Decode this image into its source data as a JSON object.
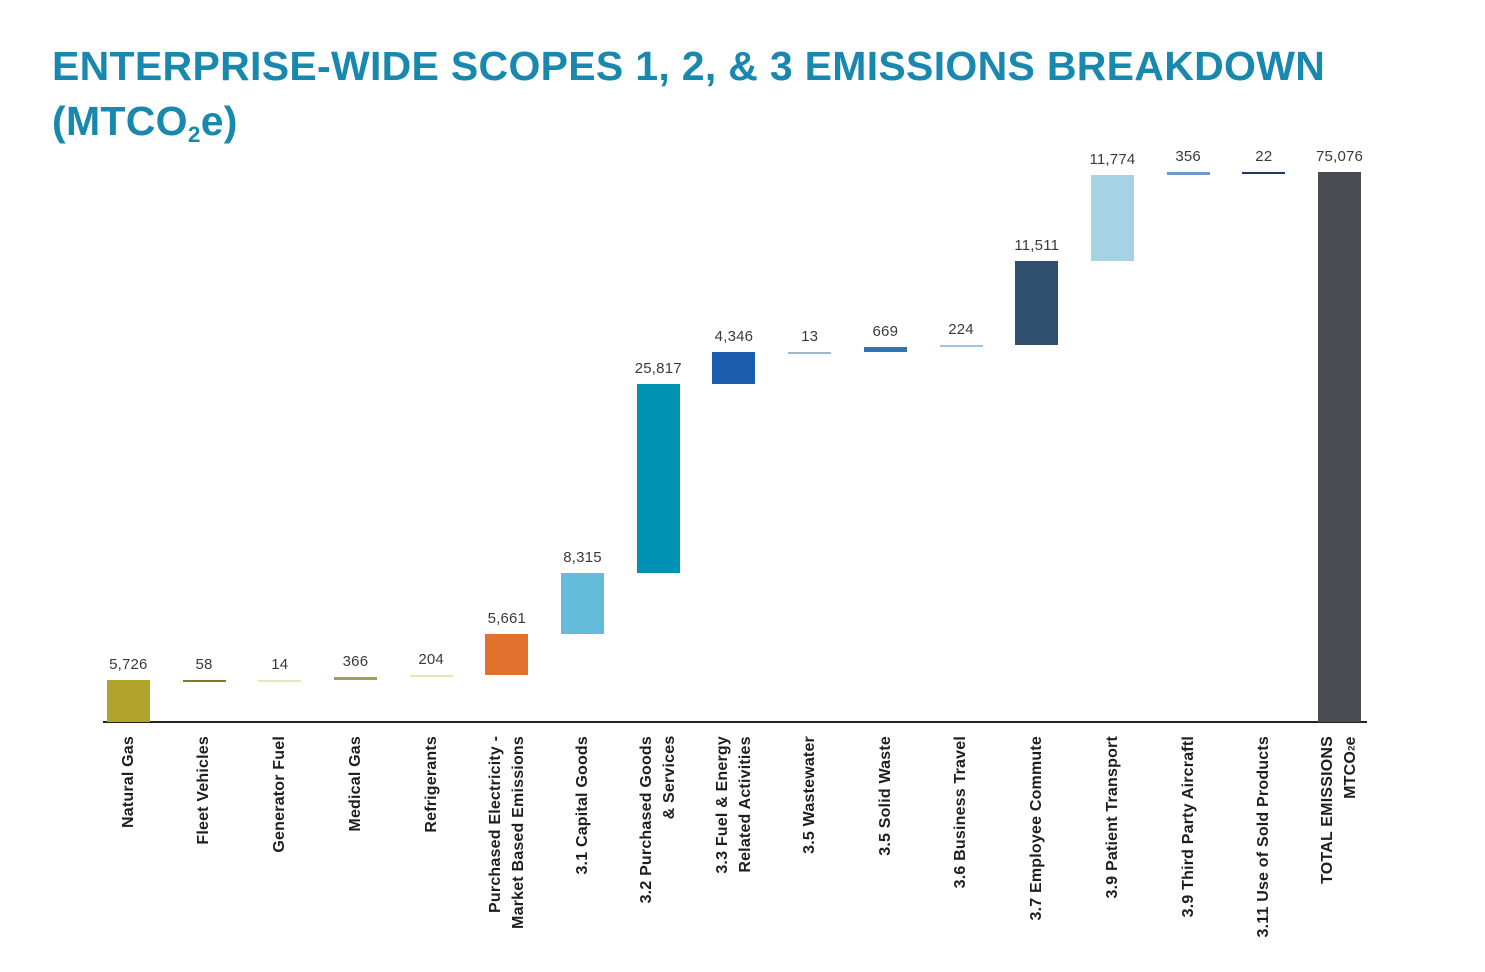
{
  "title": {
    "line1": "ENTERPRISE-WIDE SCOPES 1, 2, & 3 EMISSIONS BREAKDOWN",
    "line2": "(MTCO~2~e)"
  },
  "colors": {
    "title": "#1888ae",
    "axis": "#232323",
    "value_label": "#3a3a3a",
    "category_label": "#1e1e1e"
  },
  "chart_data": {
    "type": "bar",
    "subtype": "waterfall",
    "title": "ENTERPRISE-WIDE SCOPES 1, 2, & 3 EMISSIONS BREAKDOWN (MTCO2e)",
    "unit": "MTCO2e",
    "ylim": [
      0,
      75076
    ],
    "grid": false,
    "legend": false,
    "total": 75076,
    "categories": [
      "Natural Gas",
      "Fleet Vehicles",
      "Generator Fuel",
      "Medical Gas",
      "Refrigerants",
      "Purchased Electricity - Market Based Emissions",
      "3.1 Capital Goods",
      "3.2 Purchased Goods & Services",
      "3.3 Fuel & Energy Related Activities",
      "3.5 Wastewater",
      "3.5 Solid Waste",
      "3.6 Business Travel",
      "3.7 Employee Commute",
      "3.9 Patient Transport",
      "3.9 Third Party Aircraftl",
      "3.11 Use of Sold Products",
      "TOTAL EMISSIONS MTCO2e"
    ],
    "values": [
      5726,
      58,
      14,
      366,
      204,
      5661,
      8315,
      25817,
      4346,
      13,
      669,
      224,
      11511,
      11774,
      356,
      22,
      75076
    ],
    "bars": [
      {
        "category": "Natural Gas",
        "label_lines": [
          "Natural Gas"
        ],
        "value": 5726,
        "value_label": "5,726",
        "color": "#b1a42c",
        "is_total": false
      },
      {
        "category": "Fleet Vehicles",
        "label_lines": [
          "Fleet Vehicles"
        ],
        "value": 58,
        "value_label": "58",
        "color": "#7f7b28",
        "is_total": false
      },
      {
        "category": "Generator Fuel",
        "label_lines": [
          "Generator Fuel"
        ],
        "value": 14,
        "value_label": "14",
        "color": "#e9e5c0",
        "is_total": false
      },
      {
        "category": "Medical Gas",
        "label_lines": [
          "Medical Gas"
        ],
        "value": 366,
        "value_label": "366",
        "color": "#a29c60",
        "is_total": false
      },
      {
        "category": "Refrigerants",
        "label_lines": [
          "Refrigerants"
        ],
        "value": 204,
        "value_label": "204",
        "color": "#e8e4b4",
        "is_total": false
      },
      {
        "category": "Purchased Electricity - Market Based Emissions",
        "label_lines": [
          "Purchased Electricity -",
          "Market Based Emissions"
        ],
        "value": 5661,
        "value_label": "5,661",
        "color": "#e1722d",
        "is_total": false
      },
      {
        "category": "3.1 Capital Goods",
        "label_lines": [
          "3.1 Capital Goods"
        ],
        "value": 8315,
        "value_label": "8,315",
        "color": "#63bcd9",
        "is_total": false
      },
      {
        "category": "3.2 Purchased Goods & Services",
        "label_lines": [
          "3.2 Purchased Goods",
          "& Services"
        ],
        "value": 25817,
        "value_label": "25,817",
        "color": "#0092b4",
        "is_total": false
      },
      {
        "category": "3.3 Fuel & Energy Related Activities",
        "label_lines": [
          "3.3 Fuel & Energy",
          "Related Activities"
        ],
        "value": 4346,
        "value_label": "4,346",
        "color": "#1a5dad",
        "is_total": false
      },
      {
        "category": "3.5 Wastewater",
        "label_lines": [
          "3.5 Wastewater"
        ],
        "value": 13,
        "value_label": "13",
        "color": "#9fb6cb",
        "is_total": false
      },
      {
        "category": "3.5 Solid Waste",
        "label_lines": [
          "3.5 Solid Waste"
        ],
        "value": 669,
        "value_label": "669",
        "color": "#2e75b6",
        "is_total": false
      },
      {
        "category": "3.6 Business Travel",
        "label_lines": [
          "3.6 Business Travel"
        ],
        "value": 224,
        "value_label": "224",
        "color": "#9dc3e6",
        "is_total": false
      },
      {
        "category": "3.7 Employee Commute",
        "label_lines": [
          "3.7 Employee Commute"
        ],
        "value": 11511,
        "value_label": "11,511",
        "color": "#2f4f6d",
        "is_total": false
      },
      {
        "category": "3.9 Patient Transport",
        "label_lines": [
          "3.9 Patient Transport"
        ],
        "value": 11774,
        "value_label": "11,774",
        "color": "#a5d3e3",
        "is_total": false
      },
      {
        "category": "3.9 Third Party Aircraftl",
        "label_lines": [
          "3.9 Third Party Aircraftl"
        ],
        "value": 356,
        "value_label": "356",
        "color": "#6d99cd",
        "is_total": false
      },
      {
        "category": "3.11 Use of Sold Products",
        "label_lines": [
          "3.11 Use of Sold Products"
        ],
        "value": 22,
        "value_label": "22",
        "color": "#1f3864",
        "is_total": false
      },
      {
        "category": "TOTAL EMISSIONS MTCO2e",
        "label_lines": [
          "TOTAL EMISSIONS",
          "MTCO~2~e"
        ],
        "value": 75076,
        "value_label": "75,076",
        "color": "#494c52",
        "is_total": true
      }
    ]
  }
}
